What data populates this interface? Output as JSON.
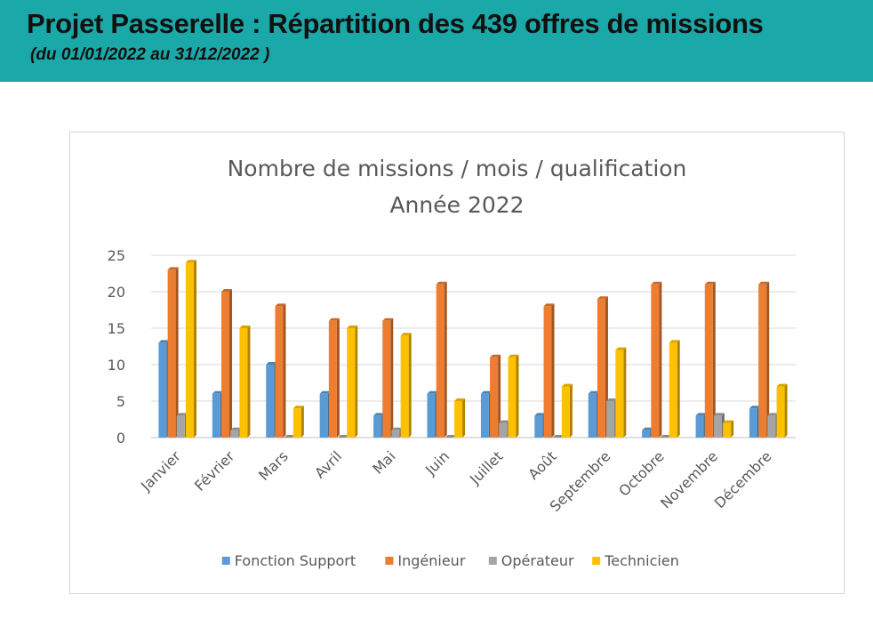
{
  "header": {
    "title": "Projet Passerelle : Répartition des 439 offres de missions",
    "subtitle": "(du 01/01/2022  au  31/12/2022 )",
    "background_color": "#1aa8a8"
  },
  "chart_data": {
    "type": "bar",
    "title": [
      "Nombre de missions / mois / qualification",
      "Année 2022"
    ],
    "xlabel": "",
    "ylabel": "",
    "ylim": [
      0,
      25
    ],
    "yticks": [
      0,
      5,
      10,
      15,
      20,
      25
    ],
    "grid": true,
    "legend_position": "bottom",
    "categories": [
      "Janvier",
      "Février",
      "Mars",
      "Avril",
      "Mai",
      "Juin",
      "Juillet",
      "Août",
      "Septembre",
      "Octobre",
      "Novembre",
      "Décembre"
    ],
    "series": [
      {
        "name": "Fonction Support",
        "color": "#5b9bd5",
        "values": [
          13,
          6,
          10,
          6,
          3,
          6,
          6,
          3,
          6,
          1,
          3,
          4
        ]
      },
      {
        "name": "Ingénieur",
        "color": "#ed7d31",
        "values": [
          23,
          20,
          18,
          16,
          16,
          21,
          11,
          18,
          19,
          21,
          21,
          21
        ]
      },
      {
        "name": "Opérateur",
        "color": "#a5a5a5",
        "values": [
          3,
          1,
          0,
          0,
          1,
          0,
          2,
          0,
          5,
          0,
          3,
          3
        ]
      },
      {
        "name": "Technicien",
        "color": "#ffc000",
        "values": [
          24,
          15,
          4,
          15,
          14,
          5,
          11,
          7,
          12,
          13,
          2,
          7
        ]
      }
    ]
  }
}
